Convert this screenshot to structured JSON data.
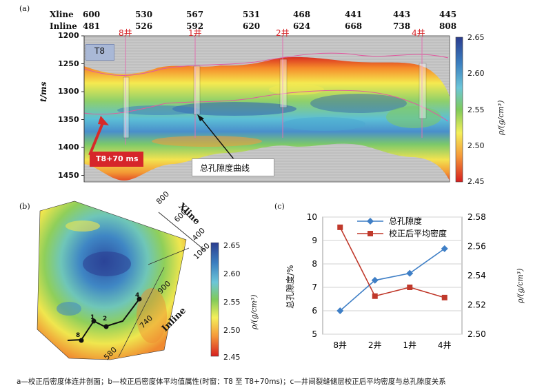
{
  "panels": {
    "a": "(a)",
    "b": "(b)",
    "c": "(c)"
  },
  "section": {
    "xline_label": "Xline",
    "inline_label": "Inline",
    "xline_values": [
      "600",
      "530",
      "567",
      "531",
      "468",
      "441",
      "443",
      "445"
    ],
    "inline_values": [
      "481",
      "526",
      "592",
      "620",
      "624",
      "668",
      "738",
      "808"
    ],
    "wells": [
      "8井",
      "1井",
      "2井",
      "4井"
    ],
    "y_axis_label": "t/ms",
    "y_ticks": [
      "1200",
      "1250",
      "1300",
      "1350",
      "1400",
      "1450"
    ],
    "horizon_t8": "T8",
    "horizon_t8_70": "T8+70 ms",
    "porosity_curve_label": "总孔隙度曲线",
    "colorbar_ticks": [
      "2.65",
      "2.60",
      "2.55",
      "2.50",
      "2.45"
    ],
    "colorbar_label": "ρ/(g/cm³)",
    "colors": {
      "low": "#d7191c",
      "mid1": "#fdae61",
      "mid2": "#ffff8c",
      "mid3": "#a6d96a",
      "mid4": "#4fb3d6",
      "high": "#2b4ea2",
      "t8_box": "#a9b8d6",
      "t8_70_box": "#d6262a"
    }
  },
  "map": {
    "xline_label": "Xline",
    "inline_label": "Inline",
    "xline_ticks": [
      "800",
      "600",
      "400"
    ],
    "inline_ticks": [
      "1060",
      "900",
      "740",
      "580"
    ],
    "well_labels": [
      "8",
      "1",
      "2",
      "4"
    ],
    "colorbar_ticks": [
      "2.65",
      "2.60",
      "2.55",
      "2.50",
      "2.45"
    ],
    "colorbar_label": "ρ/(g/cm³)"
  },
  "chart_data": {
    "type": "line",
    "categories": [
      "8井",
      "2井",
      "1井",
      "4井"
    ],
    "series": [
      {
        "name": "总孔隙度",
        "axis": "left",
        "color": "#3f7fc6",
        "values": [
          6.0,
          7.3,
          7.6,
          8.65
        ]
      },
      {
        "name": "校正后平均密度",
        "axis": "right",
        "color": "#c0392b",
        "values": [
          2.573,
          2.526,
          2.532,
          2.525
        ]
      }
    ],
    "ylabel_left": "总孔隙度/%",
    "ylabel_right": "ρ/(g/cm³)",
    "ylim_left": [
      5,
      10
    ],
    "ylim_right": [
      2.5,
      2.58
    ],
    "yticks_left": [
      "5",
      "6",
      "7",
      "8",
      "9",
      "10"
    ],
    "yticks_right": [
      "2.50",
      "2.52",
      "2.54",
      "2.56",
      "2.58"
    ],
    "grid": true,
    "legend": "top-center"
  },
  "caption": "a—校正后密度体连井剖面；b—校正后密度体平均值属性(时窗：T8 至 T8+70ms)；c—井间裂缝储层校正后平均密度与总孔隙度关系"
}
